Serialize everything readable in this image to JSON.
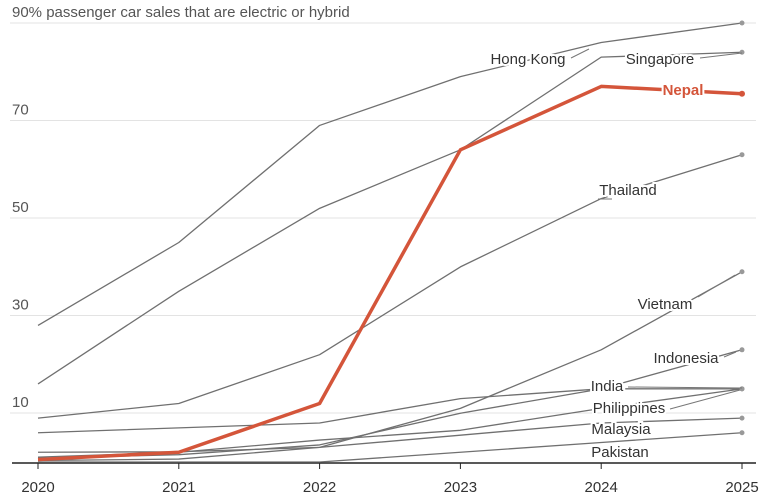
{
  "chart_data": {
    "type": "line",
    "title": "90% passenger car sales that are electric or hybrid",
    "xlabel": "",
    "ylabel": "",
    "x": [
      2020,
      2021,
      2022,
      2023,
      2024,
      2025
    ],
    "xlim": [
      2020,
      2025
    ],
    "ylim": [
      0,
      90
    ],
    "yticks": [
      "10",
      "30",
      "50",
      "70"
    ],
    "grid": true,
    "highlight_color": "#d4553a",
    "base_color": "#707070",
    "series": [
      {
        "name": "Hong Kong",
        "values": [
          28,
          45,
          69,
          79,
          86,
          90
        ]
      },
      {
        "name": "Singapore",
        "values": [
          16,
          35,
          52,
          64,
          83,
          84
        ]
      },
      {
        "name": "Nepal",
        "values": [
          0.5,
          2,
          12,
          64,
          77,
          75.5
        ],
        "highlight": true
      },
      {
        "name": "Thailand",
        "values": [
          9,
          12,
          22,
          40,
          54,
          63
        ]
      },
      {
        "name": "Vietnam",
        "values": [
          0.3,
          0.6,
          3,
          11,
          23,
          39
        ]
      },
      {
        "name": "Indonesia",
        "values": [
          0.8,
          1.5,
          3.5,
          10,
          15,
          23
        ]
      },
      {
        "name": "India",
        "values": [
          6,
          7,
          8,
          13,
          15,
          15
        ]
      },
      {
        "name": "Philippines",
        "values": [
          1,
          2,
          4.5,
          6.5,
          11,
          15
        ]
      },
      {
        "name": "Malaysia",
        "values": [
          2,
          2.1,
          3,
          5.5,
          8,
          9
        ]
      },
      {
        "name": "Pakistan",
        "values": [
          0,
          0,
          0,
          2,
          4,
          6
        ]
      }
    ]
  }
}
